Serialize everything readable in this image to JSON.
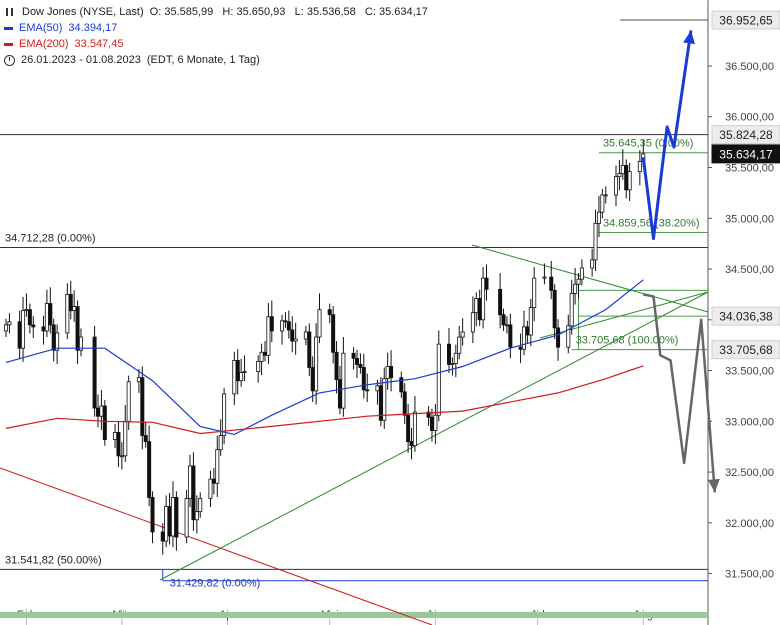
{
  "legend": {
    "instrument": "Dow Jones (NYSE, Last)",
    "ohlc": "O: 35.585,99   H: 35.650,93   L: 35.536,58   C: 35.634,17",
    "ema50_label": "EMA(50)",
    "ema50_value": "34.394,17",
    "ema200_label": "EMA(200)",
    "ema200_value": "33.547,45",
    "period": "26.01.2023 - 01.08.2023",
    "period_detail": "(EDT, 6 Monate, 1 Tag)"
  },
  "chart_data": {
    "type": "line",
    "title": "Dow Jones (NYSE, Last)",
    "y_axis": {
      "ticks": [
        31500,
        32000,
        32500,
        33000,
        33500,
        34000,
        34500,
        35000,
        35500,
        36000,
        36500
      ],
      "tick_labels": [
        "31.500,00",
        "32.000,00",
        "32.500,00",
        "33.000,00",
        "33.500,00",
        "34.000,00",
        "34.500,00",
        "35.000,00",
        "35.500,00",
        "36.000,00",
        "36.500,00"
      ],
      "range": [
        31220,
        37150
      ],
      "position": "right"
    },
    "x_axis": {
      "labels": [
        "Feb",
        "Mär",
        "Apr",
        "Mai",
        "Jun",
        "Jul",
        "Aug"
      ],
      "label_dates": [
        "2023-02-01",
        "2023-03-01",
        "2023-04-01",
        "2023-05-01",
        "2023-06-01",
        "2023-07-01",
        "2023-08-01"
      ],
      "range": [
        "2023-01-26",
        "2023-08-20"
      ]
    },
    "closes": [
      {
        "date": "2023-01-26",
        "close": 33950
      },
      {
        "date": "2023-01-27",
        "close": 33980
      },
      {
        "date": "2023-01-30",
        "close": 33720
      },
      {
        "date": "2023-01-31",
        "close": 34090
      },
      {
        "date": "2023-02-01",
        "close": 34100
      },
      {
        "date": "2023-02-02",
        "close": 33950
      },
      {
        "date": "2023-02-03",
        "close": 33930
      },
      {
        "date": "2023-02-06",
        "close": 33890
      },
      {
        "date": "2023-02-07",
        "close": 34160
      },
      {
        "date": "2023-02-08",
        "close": 33950
      },
      {
        "date": "2023-02-09",
        "close": 33700
      },
      {
        "date": "2023-02-10",
        "close": 33870
      },
      {
        "date": "2023-02-13",
        "close": 34250
      },
      {
        "date": "2023-02-14",
        "close": 34090
      },
      {
        "date": "2023-02-15",
        "close": 34130
      },
      {
        "date": "2023-02-16",
        "close": 33700
      },
      {
        "date": "2023-02-17",
        "close": 33830
      },
      {
        "date": "2023-02-21",
        "close": 33130
      },
      {
        "date": "2023-02-22",
        "close": 33050
      },
      {
        "date": "2023-02-23",
        "close": 33150
      },
      {
        "date": "2023-02-24",
        "close": 32820
      },
      {
        "date": "2023-02-27",
        "close": 32890
      },
      {
        "date": "2023-02-28",
        "close": 32660
      },
      {
        "date": "2023-03-01",
        "close": 32660
      },
      {
        "date": "2023-03-02",
        "close": 33000
      },
      {
        "date": "2023-03-03",
        "close": 33390
      },
      {
        "date": "2023-03-06",
        "close": 33430
      },
      {
        "date": "2023-03-07",
        "close": 32860
      },
      {
        "date": "2023-03-08",
        "close": 32800
      },
      {
        "date": "2023-03-09",
        "close": 32250
      },
      {
        "date": "2023-03-10",
        "close": 31910
      },
      {
        "date": "2023-03-13",
        "close": 31820
      },
      {
        "date": "2023-03-14",
        "close": 32160
      },
      {
        "date": "2023-03-15",
        "close": 31870
      },
      {
        "date": "2023-03-16",
        "close": 32250
      },
      {
        "date": "2023-03-17",
        "close": 31860
      },
      {
        "date": "2023-03-20",
        "close": 32240
      },
      {
        "date": "2023-03-21",
        "close": 32560
      },
      {
        "date": "2023-03-22",
        "close": 32030
      },
      {
        "date": "2023-03-23",
        "close": 32110
      },
      {
        "date": "2023-03-24",
        "close": 32240
      },
      {
        "date": "2023-03-27",
        "close": 32430
      },
      {
        "date": "2023-03-28",
        "close": 32390
      },
      {
        "date": "2023-03-29",
        "close": 32720
      },
      {
        "date": "2023-03-30",
        "close": 32860
      },
      {
        "date": "2023-03-31",
        "close": 33270
      },
      {
        "date": "2023-04-03",
        "close": 33600
      },
      {
        "date": "2023-04-04",
        "close": 33400
      },
      {
        "date": "2023-04-05",
        "close": 33480
      },
      {
        "date": "2023-04-06",
        "close": 33490
      },
      {
        "date": "2023-04-10",
        "close": 33590
      },
      {
        "date": "2023-04-11",
        "close": 33680
      },
      {
        "date": "2023-04-12",
        "close": 33650
      },
      {
        "date": "2023-04-13",
        "close": 34030
      },
      {
        "date": "2023-04-14",
        "close": 33890
      },
      {
        "date": "2023-04-17",
        "close": 33990
      },
      {
        "date": "2023-04-18",
        "close": 33980
      },
      {
        "date": "2023-04-19",
        "close": 33900
      },
      {
        "date": "2023-04-20",
        "close": 33790
      },
      {
        "date": "2023-04-21",
        "close": 33810
      },
      {
        "date": "2023-04-24",
        "close": 33880
      },
      {
        "date": "2023-04-25",
        "close": 33530
      },
      {
        "date": "2023-04-26",
        "close": 33300
      },
      {
        "date": "2023-04-27",
        "close": 33830
      },
      {
        "date": "2023-04-28",
        "close": 34100
      },
      {
        "date": "2023-05-01",
        "close": 34050
      },
      {
        "date": "2023-05-02",
        "close": 33680
      },
      {
        "date": "2023-05-03",
        "close": 33410
      },
      {
        "date": "2023-05-04",
        "close": 33130
      },
      {
        "date": "2023-05-05",
        "close": 33670
      },
      {
        "date": "2023-05-08",
        "close": 33620
      },
      {
        "date": "2023-05-09",
        "close": 33560
      },
      {
        "date": "2023-05-10",
        "close": 33530
      },
      {
        "date": "2023-05-11",
        "close": 33310
      },
      {
        "date": "2023-05-12",
        "close": 33300
      },
      {
        "date": "2023-05-15",
        "close": 33350
      },
      {
        "date": "2023-05-16",
        "close": 33010
      },
      {
        "date": "2023-05-17",
        "close": 33420
      },
      {
        "date": "2023-05-18",
        "close": 33540
      },
      {
        "date": "2023-05-19",
        "close": 33430
      },
      {
        "date": "2023-05-22",
        "close": 33290
      },
      {
        "date": "2023-05-23",
        "close": 33060
      },
      {
        "date": "2023-05-24",
        "close": 32800
      },
      {
        "date": "2023-05-25",
        "close": 32760
      },
      {
        "date": "2023-05-26",
        "close": 33090
      },
      {
        "date": "2023-05-30",
        "close": 33040
      },
      {
        "date": "2023-05-31",
        "close": 32910
      },
      {
        "date": "2023-06-01",
        "close": 33060
      },
      {
        "date": "2023-06-02",
        "close": 33760
      },
      {
        "date": "2023-06-05",
        "close": 33560
      },
      {
        "date": "2023-06-06",
        "close": 33570
      },
      {
        "date": "2023-06-07",
        "close": 33670
      },
      {
        "date": "2023-06-08",
        "close": 33830
      },
      {
        "date": "2023-06-09",
        "close": 33880
      },
      {
        "date": "2023-06-12",
        "close": 34070
      },
      {
        "date": "2023-06-13",
        "close": 34210
      },
      {
        "date": "2023-06-14",
        "close": 34000
      },
      {
        "date": "2023-06-15",
        "close": 34410
      },
      {
        "date": "2023-06-16",
        "close": 34300
      },
      {
        "date": "2023-06-20",
        "close": 34050
      },
      {
        "date": "2023-06-21",
        "close": 33950
      },
      {
        "date": "2023-06-22",
        "close": 33950
      },
      {
        "date": "2023-06-23",
        "close": 33730
      },
      {
        "date": "2023-06-26",
        "close": 33710
      },
      {
        "date": "2023-06-27",
        "close": 33930
      },
      {
        "date": "2023-06-28",
        "close": 33850
      },
      {
        "date": "2023-06-29",
        "close": 34120
      },
      {
        "date": "2023-06-30",
        "close": 34410
      },
      {
        "date": "2023-07-03",
        "close": 34420
      },
      {
        "date": "2023-07-05",
        "close": 34290
      },
      {
        "date": "2023-07-06",
        "close": 33920
      },
      {
        "date": "2023-07-07",
        "close": 33730
      },
      {
        "date": "2023-07-10",
        "close": 33940
      },
      {
        "date": "2023-07-11",
        "close": 34260
      },
      {
        "date": "2023-07-12",
        "close": 34350
      },
      {
        "date": "2023-07-13",
        "close": 34400
      },
      {
        "date": "2023-07-14",
        "close": 34510
      },
      {
        "date": "2023-07-17",
        "close": 34590
      },
      {
        "date": "2023-07-18",
        "close": 34950
      },
      {
        "date": "2023-07-19",
        "close": 35060
      },
      {
        "date": "2023-07-20",
        "close": 35230
      },
      {
        "date": "2023-07-21",
        "close": 35230
      },
      {
        "date": "2023-07-24",
        "close": 35410
      },
      {
        "date": "2023-07-25",
        "close": 35440
      },
      {
        "date": "2023-07-26",
        "close": 35520
      },
      {
        "date": "2023-07-27",
        "close": 35280
      },
      {
        "date": "2023-07-28",
        "close": 35460
      },
      {
        "date": "2023-07-31",
        "close": 35560
      },
      {
        "date": "2023-08-01",
        "close": 35634
      }
    ],
    "ema50": [
      {
        "date": "2023-01-26",
        "value": 33580
      },
      {
        "date": "2023-02-10",
        "value": 33720
      },
      {
        "date": "2023-02-24",
        "value": 33720
      },
      {
        "date": "2023-03-10",
        "value": 33400
      },
      {
        "date": "2023-03-24",
        "value": 32950
      },
      {
        "date": "2023-04-03",
        "value": 32870
      },
      {
        "date": "2023-04-14",
        "value": 33060
      },
      {
        "date": "2023-04-28",
        "value": 33280
      },
      {
        "date": "2023-05-12",
        "value": 33360
      },
      {
        "date": "2023-05-26",
        "value": 33420
      },
      {
        "date": "2023-06-09",
        "value": 33540
      },
      {
        "date": "2023-06-23",
        "value": 33720
      },
      {
        "date": "2023-07-07",
        "value": 33850
      },
      {
        "date": "2023-07-21",
        "value": 34100
      },
      {
        "date": "2023-08-01",
        "value": 34394
      }
    ],
    "ema200": [
      {
        "date": "2023-01-26",
        "value": 32930
      },
      {
        "date": "2023-02-10",
        "value": 33030
      },
      {
        "date": "2023-02-24",
        "value": 33000
      },
      {
        "date": "2023-03-10",
        "value": 32990
      },
      {
        "date": "2023-03-24",
        "value": 32880
      },
      {
        "date": "2023-04-14",
        "value": 32950
      },
      {
        "date": "2023-05-12",
        "value": 33050
      },
      {
        "date": "2023-06-09",
        "value": 33100
      },
      {
        "date": "2023-07-07",
        "value": 33280
      },
      {
        "date": "2023-07-21",
        "value": 33420
      },
      {
        "date": "2023-08-01",
        "value": 33547
      }
    ],
    "series": [
      {
        "name": "EMA(50)",
        "value": "34.394,17",
        "color": "#1a3ad6"
      },
      {
        "name": "EMA(200)",
        "value": "33.547,45",
        "color": "#d61a1a"
      }
    ],
    "horizontal_levels": [
      {
        "value": 36952.65,
        "label": "36.952,65",
        "badge": "light"
      },
      {
        "value": 35824.28,
        "label": "35.824,28",
        "badge": "light"
      },
      {
        "value": 35634.17,
        "label": "35.634,17",
        "badge": "dark"
      },
      {
        "value": 34712.28,
        "label": "34.712,28 (0.00%)",
        "side": "left"
      },
      {
        "value": 34036.38,
        "label": "34.036,38",
        "badge": "light"
      },
      {
        "value": 33705.68,
        "label": "33.705,68",
        "badge": "light"
      },
      {
        "value": 31541.82,
        "label": "31.541,82 (50.00%)",
        "side": "left"
      }
    ],
    "fibonacci": [
      {
        "value": 35645.35,
        "label": "35.645,35 (0.00%)"
      },
      {
        "value": 34859.56,
        "label": "34.859,56 (38.20%)"
      },
      {
        "value": 33705.68,
        "label": "33.705,68 (100.00%)"
      },
      {
        "value": 31429.82,
        "label": "31.429,82 (0.00%)"
      }
    ],
    "scenarios": [
      {
        "name": "bullish",
        "color": "#1a3ad6",
        "path": [
          {
            "date": "2023-08-01",
            "value": 35600
          },
          {
            "date": "2023-08-04",
            "value": 34800
          },
          {
            "date": "2023-08-08",
            "value": 35900
          },
          {
            "date": "2023-08-10",
            "value": 35700
          },
          {
            "date": "2023-08-15",
            "value": 36850
          }
        ]
      },
      {
        "name": "bearish",
        "color": "#666666",
        "path": [
          {
            "date": "2023-08-01",
            "value": 34250
          },
          {
            "date": "2023-08-04",
            "value": 34230
          },
          {
            "date": "2023-08-06",
            "value": 33650
          },
          {
            "date": "2023-08-09",
            "value": 33600
          },
          {
            "date": "2023-08-13",
            "value": 32590
          },
          {
            "date": "2023-08-18",
            "value": 34000
          },
          {
            "date": "2023-08-22",
            "value": 32300
          }
        ]
      }
    ],
    "grid": true,
    "legend_position": "top-left"
  }
}
